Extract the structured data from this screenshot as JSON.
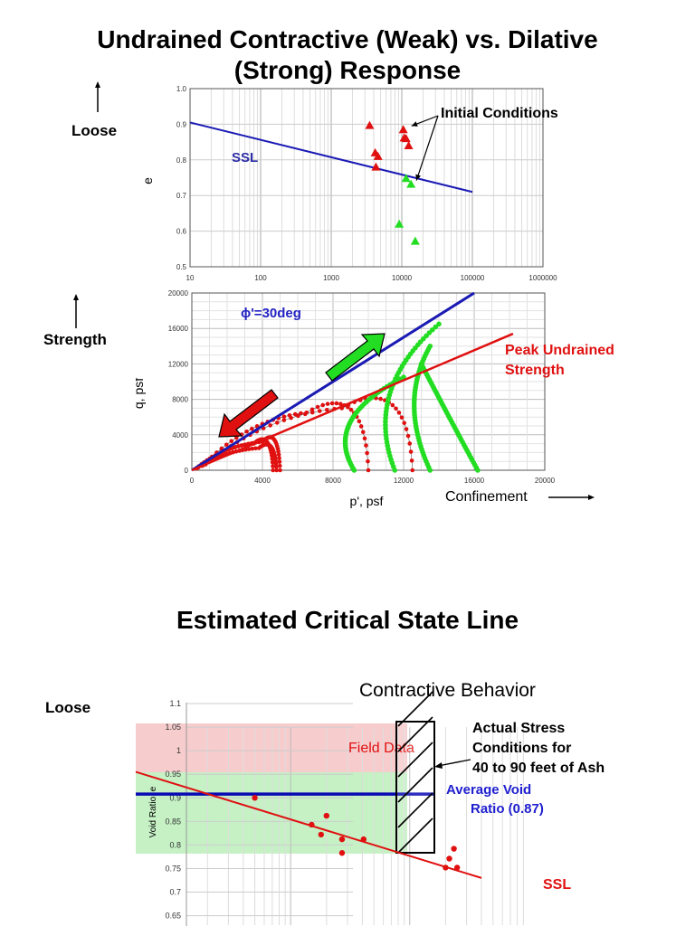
{
  "slide": {
    "title_line1": "Undrained Contractive (Weak) vs. Dilative",
    "title_line2": "(Strong) Response",
    "loose_label_top": "Loose",
    "strength_label": "Strength",
    "confinement_label": "Confinement",
    "title2": "Estimated Critical State Line",
    "loose_label_bottom": "Loose"
  },
  "colors": {
    "ssl_blue": "#1a1ab4",
    "contractive_red": "#e01010",
    "dilative_green": "#22dd22",
    "field_band_red": "#f6c6c8",
    "field_band_green": "#bff0bf",
    "avg_void_blue": "#0a0ab4"
  },
  "chart_data": [
    {
      "type": "scatter",
      "title": "",
      "xlabel": "",
      "ylabel": "e",
      "xscale": "log",
      "xlim": [
        10,
        1000000
      ],
      "ylim": [
        0.5,
        1.0
      ],
      "xticks": [
        "10",
        "100",
        "1000",
        "10000",
        "100000",
        "1000000"
      ],
      "yticks": [
        "0.5",
        "0.6",
        "0.7",
        "0.8",
        "0.9",
        "1.0"
      ],
      "grid": true,
      "ssl_line": {
        "label": "SSL",
        "x": [
          10,
          100000
        ],
        "y": [
          0.905,
          0.71
        ]
      },
      "series": [
        {
          "color": "red",
          "marker": "triangle",
          "x": [
            3500,
            4200,
            4600,
            4300,
            10500,
            11500,
            12500,
            10800
          ],
          "y": [
            0.897,
            0.82,
            0.81,
            0.78,
            0.885,
            0.86,
            0.84,
            0.862
          ]
        },
        {
          "color": "green",
          "marker": "triangle",
          "x": [
            11500,
            13500,
            9200,
            15500
          ],
          "y": [
            0.748,
            0.732,
            0.62,
            0.572
          ]
        }
      ],
      "annotations": [
        "Initial Conditions"
      ]
    },
    {
      "type": "line",
      "title": "",
      "xlabel": "p', psf",
      "ylabel": "q, psf",
      "xlim": [
        0,
        20000
      ],
      "ylim": [
        0,
        20000
      ],
      "xticks": [
        "0",
        "4000",
        "8000",
        "12000",
        "16000",
        "20000"
      ],
      "yticks": [
        "0",
        "4000",
        "8000",
        "12000",
        "16000",
        "20000"
      ],
      "grid": true,
      "lines": [
        {
          "label": "ϕ'=30deg",
          "color": "blue",
          "x": [
            0,
            16000
          ],
          "y": [
            0,
            20000
          ]
        },
        {
          "label": "Peak Undrained Strength",
          "color": "red",
          "x": [
            0,
            18200
          ],
          "y": [
            0,
            15400
          ]
        }
      ],
      "red_paths": [
        {
          "start": 4600,
          "end_x": 2000,
          "peak": [
            3500,
            3000
          ]
        },
        {
          "start": 10000,
          "end_x": 5000,
          "peak": [
            6500,
            6500
          ]
        },
        {
          "start": 12500,
          "end_x": 6500,
          "peak": [
            8500,
            7000
          ]
        },
        {
          "start": 4800,
          "end_x": 3000,
          "peak": [
            3800,
            2500
          ]
        },
        {
          "start": 5000,
          "end_x": 2500,
          "peak": [
            4000,
            3200
          ]
        }
      ],
      "green_paths": [
        {
          "start": 9200,
          "end": [
            12000,
            10500
          ]
        },
        {
          "start": 11500,
          "end": [
            14000,
            16500
          ]
        },
        {
          "start": 13500,
          "end": [
            13500,
            14000
          ]
        },
        {
          "start": 16200,
          "end": [
            13000,
            12000
          ]
        }
      ]
    },
    {
      "type": "scatter",
      "title": "",
      "xlabel": "",
      "ylabel": "Void Ratio, e",
      "xscale": "log",
      "ylim": [
        0.63,
        1.1
      ],
      "yticks": [
        "0.65",
        "0.7",
        "0.75",
        "0.8",
        "0.85",
        "0.9",
        "0.95",
        "1",
        "1.05",
        "1.1"
      ],
      "grid": true,
      "points": {
        "x": [
          500,
          1500,
          1800,
          2000,
          2700,
          2700,
          4100,
          20000,
          21500,
          23500,
          25000
        ],
        "y": [
          0.9,
          0.843,
          0.822,
          0.862,
          0.812,
          0.783,
          0.812,
          0.752,
          0.771,
          0.792,
          0.752
        ]
      },
      "ssl_line": {
        "label": "SSL",
        "x": [
          50,
          40000
        ],
        "y": [
          0.955,
          0.73
        ]
      },
      "average_void_ratio": 0.87,
      "labels": {
        "field_data": "Field Data",
        "contractive": "Contractive Behavior",
        "actual_stress_1": "Actual Stress",
        "actual_stress_2": "Conditions for",
        "actual_stress_3": "40 to 90 feet of Ash",
        "avg_void_1": "Average Void",
        "avg_void_2": "Ratio (0.87)",
        "ssl": "SSL"
      }
    }
  ]
}
